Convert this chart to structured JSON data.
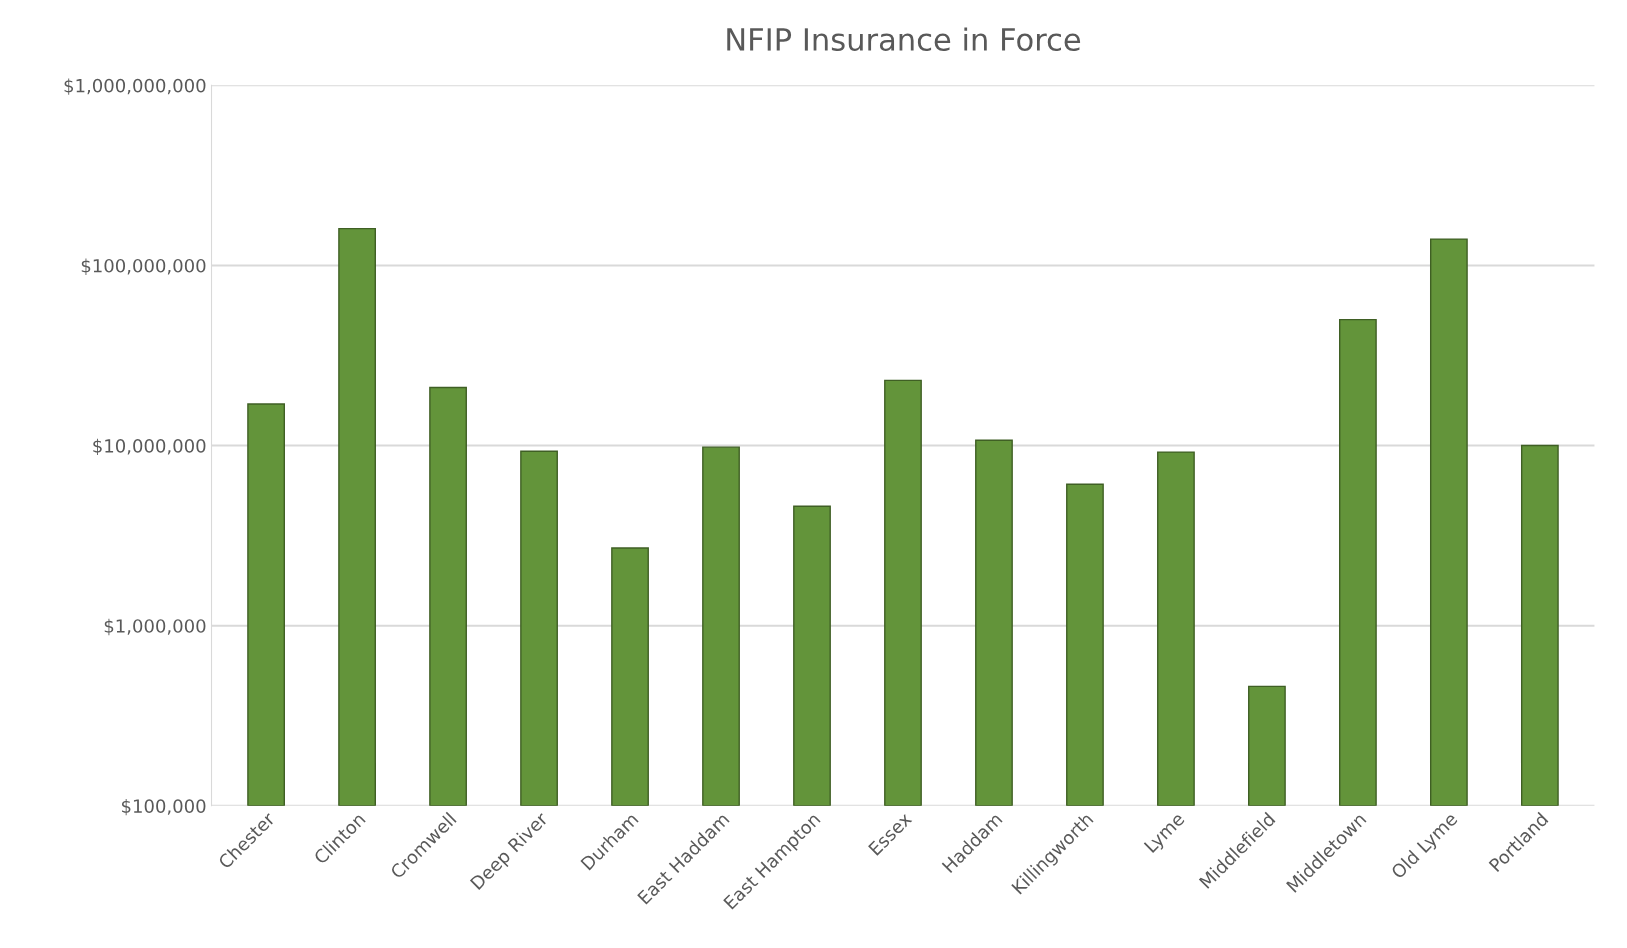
{
  "chart_data": {
    "type": "bar",
    "title": "NFIP Insurance in Force",
    "categories": [
      "Chester",
      "Clinton",
      "Cromwell",
      "Deep River",
      "Durham",
      "East Haddam",
      "East Hampton",
      "Essex",
      "Haddam",
      "Killingworth",
      "Lyme",
      "Middlefield",
      "Middletown",
      "Old Lyme",
      "Portland"
    ],
    "values": [
      17000000,
      160000000,
      21000000,
      9300000,
      2700000,
      9800000,
      4600000,
      23000000,
      10700000,
      6100000,
      9200000,
      460000,
      50000000,
      140000000,
      10000000
    ],
    "color": "#63943a",
    "log": "y",
    "ylim": [
      100000,
      1000000000
    ],
    "yticks": [
      {
        "value": 100000,
        "label": "$100,000"
      },
      {
        "value": 1000000,
        "label": "$1,000,000"
      },
      {
        "value": 10000000,
        "label": "$10,000,000"
      },
      {
        "value": 100000000,
        "label": "$100,000,000"
      },
      {
        "value": 1000000000,
        "label": "$1,000,000,000"
      }
    ],
    "grid": "y"
  }
}
